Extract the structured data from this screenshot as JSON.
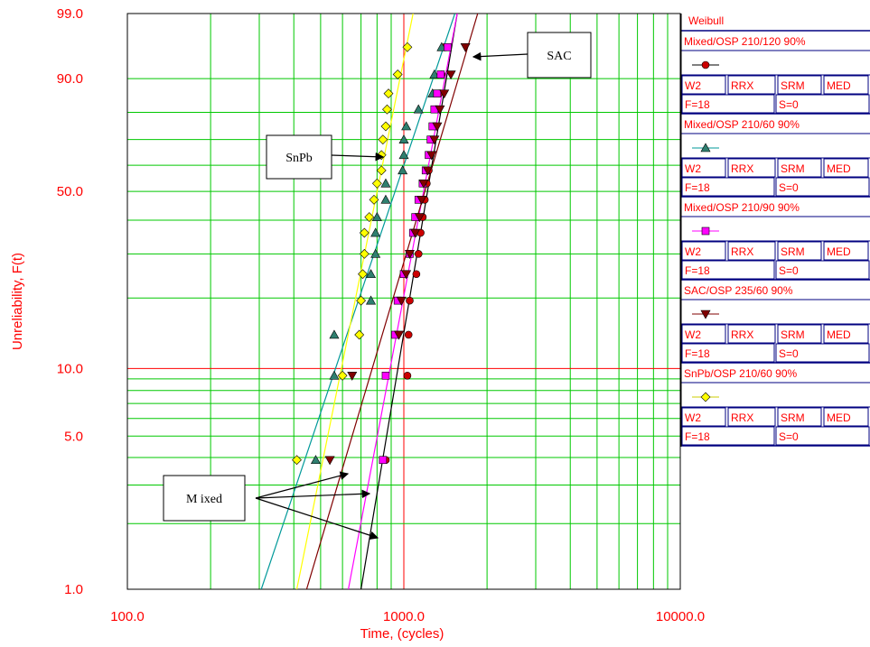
{
  "chart_data": {
    "type": "scatter",
    "title": "",
    "xlabel": "Time, (cycles)",
    "ylabel": "Unreliability, F(t)",
    "x_scale": "log",
    "y_scale": "weibull",
    "xlim": [
      100,
      10000
    ],
    "ylim": [
      1,
      99
    ],
    "x_ticks": [
      "100.0",
      "1000.0",
      "10000.0"
    ],
    "y_ticks": [
      "99.0",
      "90.0",
      "50.0",
      "10.0",
      "5.0",
      "1.0"
    ],
    "grid": true,
    "series": [
      {
        "name": "Mixed/OSP 210/120 90%",
        "marker": "circle",
        "color": "#cc0000",
        "line_color": "#000000",
        "fit_line": [
          [
            700,
            1.0
          ],
          [
            1560,
            99.0
          ]
        ],
        "points": [
          [
            860,
            3.9
          ],
          [
            1030,
            9.3
          ],
          [
            1040,
            14
          ],
          [
            1050,
            19.5
          ],
          [
            1110,
            25
          ],
          [
            1130,
            30
          ],
          [
            1150,
            36
          ],
          [
            1170,
            41
          ],
          [
            1190,
            47
          ],
          [
            1210,
            53
          ],
          [
            1230,
            58
          ],
          [
            1250,
            64
          ],
          [
            1270,
            70
          ],
          [
            1290,
            75
          ],
          [
            1310,
            81
          ],
          [
            1340,
            86
          ],
          [
            1370,
            91
          ],
          [
            1400,
            96
          ]
        ]
      },
      {
        "name": "Mixed/OSP 210/60 90%",
        "marker": "triangle",
        "color": "#2f7f6f",
        "line_color": "#009999",
        "fit_line": [
          [
            305,
            1.0
          ],
          [
            1530,
            99.0
          ]
        ],
        "points": [
          [
            480,
            3.9
          ],
          [
            560,
            9.3
          ],
          [
            560,
            14
          ],
          [
            760,
            19.5
          ],
          [
            760,
            25
          ],
          [
            790,
            30
          ],
          [
            790,
            36
          ],
          [
            800,
            41
          ],
          [
            860,
            47
          ],
          [
            860,
            53
          ],
          [
            990,
            58
          ],
          [
            1000,
            64
          ],
          [
            1000,
            70
          ],
          [
            1020,
            75
          ],
          [
            1130,
            81
          ],
          [
            1270,
            86
          ],
          [
            1290,
            91
          ],
          [
            1370,
            96
          ]
        ]
      },
      {
        "name": "Mixed/OSP 210/90 90%",
        "marker": "square",
        "color": "#ff00ff",
        "line_color": "#ff00ff",
        "fit_line": [
          [
            630,
            1.0
          ],
          [
            1560,
            99.0
          ]
        ],
        "points": [
          [
            840,
            3.9
          ],
          [
            860,
            9.3
          ],
          [
            930,
            14
          ],
          [
            950,
            19.5
          ],
          [
            1000,
            25
          ],
          [
            1050,
            30
          ],
          [
            1080,
            36
          ],
          [
            1100,
            41
          ],
          [
            1130,
            47
          ],
          [
            1170,
            53
          ],
          [
            1200,
            58
          ],
          [
            1230,
            64
          ],
          [
            1250,
            70
          ],
          [
            1270,
            75
          ],
          [
            1290,
            81
          ],
          [
            1320,
            86
          ],
          [
            1360,
            91
          ],
          [
            1440,
            96
          ]
        ]
      },
      {
        "name": "SAC/OSP 235/60 90%",
        "marker": "triangle-down",
        "color": "#800000",
        "line_color": "#800000",
        "fit_line": [
          [
            445,
            1.0
          ],
          [
            1850,
            99.0
          ]
        ],
        "points": [
          [
            540,
            3.9
          ],
          [
            650,
            9.3
          ],
          [
            960,
            14
          ],
          [
            980,
            19.5
          ],
          [
            1020,
            25
          ],
          [
            1050,
            30
          ],
          [
            1100,
            36
          ],
          [
            1140,
            41
          ],
          [
            1160,
            47
          ],
          [
            1180,
            53
          ],
          [
            1220,
            58
          ],
          [
            1260,
            64
          ],
          [
            1290,
            70
          ],
          [
            1320,
            75
          ],
          [
            1350,
            81
          ],
          [
            1400,
            86
          ],
          [
            1480,
            91
          ],
          [
            1670,
            96
          ]
        ]
      },
      {
        "name": "SnPb/OSP 210/60 90%",
        "marker": "diamond",
        "color": "#ffff00",
        "line_color": "#ffff00",
        "fit_line": [
          [
            410,
            1.0
          ],
          [
            1080,
            99.0
          ]
        ],
        "points": [
          [
            410,
            3.9
          ],
          [
            600,
            9.3
          ],
          [
            690,
            14
          ],
          [
            700,
            19.5
          ],
          [
            710,
            25
          ],
          [
            720,
            30
          ],
          [
            720,
            36
          ],
          [
            750,
            41
          ],
          [
            780,
            47
          ],
          [
            800,
            53
          ],
          [
            830,
            58
          ],
          [
            830,
            64
          ],
          [
            840,
            70
          ],
          [
            860,
            75
          ],
          [
            870,
            81
          ],
          [
            880,
            86
          ],
          [
            950,
            91
          ],
          [
            1030,
            96
          ]
        ]
      }
    ],
    "annotations": [
      {
        "text": "SAC",
        "points_to_series": "SAC/OSP 235/60 90%"
      },
      {
        "text": "SnPb",
        "points_to_series": "SnPb/OSP 210/60 90%"
      },
      {
        "text": "M ixed",
        "points_to_series": "Mixed"
      }
    ]
  },
  "legend": {
    "title": "Weibull",
    "blocks": [
      {
        "name": "Mixed/OSP 210/120 90%",
        "cells": [
          "W2",
          "RRX",
          "SRM",
          "MED"
        ],
        "f_text": "F=18",
        "s_text": "S=0"
      },
      {
        "name": "Mixed/OSP 210/60 90%",
        "cells": [
          "W2",
          "RRX",
          "SRM",
          "MED"
        ],
        "f_text": "F=18",
        "s_text": "S=0"
      },
      {
        "name": "Mixed/OSP 210/90 90%",
        "cells": [
          "W2",
          "RRX",
          "SRM",
          "MED"
        ],
        "f_text": "F=18",
        "s_text": "S=0"
      },
      {
        "name": "SAC/OSP 235/60 90%",
        "cells": [
          "W2",
          "RRX",
          "SRM",
          "MED"
        ],
        "f_text": "F=18",
        "s_text": "S=0"
      },
      {
        "name": "SnPb/OSP 210/60 90%",
        "cells": [
          "W2",
          "RRX",
          "SRM",
          "MED"
        ],
        "f_text": "F=18",
        "s_text": "S=0"
      }
    ]
  }
}
